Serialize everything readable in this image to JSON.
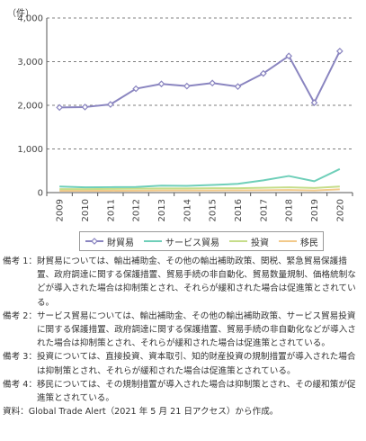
{
  "chart_data": {
    "type": "line",
    "unit_label": "（件）",
    "x": [
      "2009",
      "2010",
      "2011",
      "2012",
      "2013",
      "2014",
      "2015",
      "2016",
      "2017",
      "2018",
      "2019",
      "2020"
    ],
    "ylim": [
      0,
      4000
    ],
    "yticks": [
      "0",
      "1,000",
      "2,000",
      "3,000",
      "4,000"
    ],
    "ytick_values": [
      0,
      1000,
      2000,
      3000,
      4000
    ],
    "grid": true,
    "legend_position": "bottom",
    "series": [
      {
        "name": "財貿易",
        "color": "#8a85c0",
        "marker": "diamond",
        "values": [
          1950,
          1960,
          2020,
          2380,
          2490,
          2440,
          2510,
          2430,
          2730,
          3130,
          2060,
          3240
        ]
      },
      {
        "name": "サービス貿易",
        "color": "#6fcfb9",
        "marker": "none",
        "values": [
          140,
          120,
          125,
          130,
          160,
          155,
          175,
          200,
          280,
          380,
          260,
          540
        ]
      },
      {
        "name": "投資",
        "color": "#c6dd8a",
        "marker": "none",
        "values": [
          80,
          80,
          85,
          90,
          95,
          95,
          100,
          100,
          110,
          120,
          105,
          140
        ]
      },
      {
        "name": "移民",
        "color": "#f2c98a",
        "marker": "none",
        "values": [
          40,
          40,
          42,
          45,
          48,
          48,
          50,
          52,
          55,
          60,
          50,
          75
        ]
      }
    ]
  },
  "notes": [
    {
      "label": "備考 1：",
      "text": "財貿易については、輸出補助金、その他の輸出補助政策、関税、緊急貿易保護措置、政府調達に関する保護措置、貿易手続の非自動化、貿易数量規制、価格統制などが導入された場合は抑制策とされ、それらが緩和された場合は促進策とされている。"
    },
    {
      "label": "備考 2：",
      "text": "サービス貿易については、輸出補助金、その他の輸出補助政策、サービス貿易投資に関する保護措置、政府調達に関する保護措置、貿易手続の非自動化などが導入された場合は抑制策とされ、それらが緩和された場合は促進策とされている。"
    },
    {
      "label": "備考 3：",
      "text": "投資については、直接投資、資本取引、知的財産投資の規制措置が導入された場合は抑制策とされ、それらが緩和された場合は促進策とされている。"
    },
    {
      "label": "備考 4：",
      "text": "移民については、その規制措置が導入された場合は抑制策とされ、その緩和策が促進策とされている。"
    }
  ],
  "source": "資料：Global Trade Alert（2021 年 5 月 21 日アクセス）から作成。"
}
